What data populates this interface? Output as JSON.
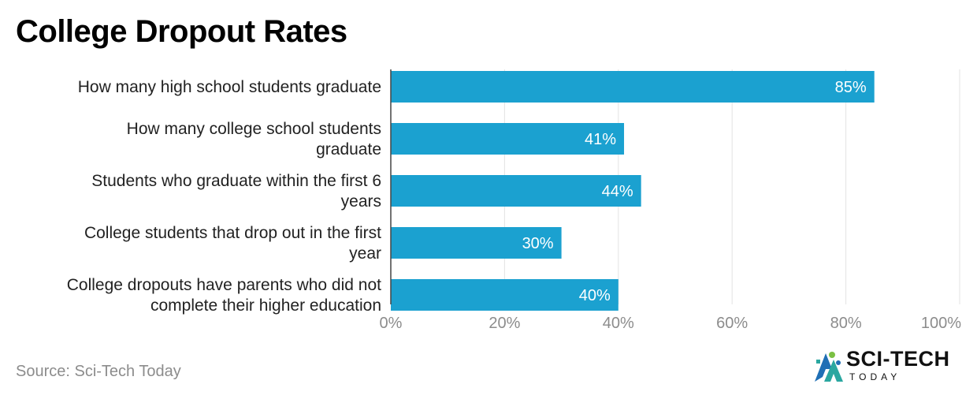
{
  "title": "College Dropout Rates",
  "source": "Source: Sci-Tech Today",
  "logo": {
    "name": "SCI-TECH",
    "sub": "TODAY"
  },
  "colors": {
    "bar": "#1ba1d0",
    "grid": "#e3e3e3",
    "axis": "#8c8c8c",
    "label": "#222222"
  },
  "chart_data": {
    "type": "bar",
    "orientation": "horizontal",
    "categories": [
      [
        "How many high school students graduate"
      ],
      [
        "How many college school students",
        "graduate"
      ],
      [
        "Students who graduate within the first 6",
        "years"
      ],
      [
        "College students that drop out in the first",
        "year"
      ],
      [
        "College dropouts have parents who did not",
        "complete their higher education"
      ]
    ],
    "values": [
      85,
      41,
      44,
      30,
      40
    ],
    "value_labels": [
      "85%",
      "41%",
      "44%",
      "30%",
      "40%"
    ],
    "xlim": [
      0,
      100
    ],
    "xticks": [
      0,
      20,
      40,
      60,
      80,
      100
    ],
    "xtick_labels": [
      "0%",
      "20%",
      "40%",
      "60%",
      "80%",
      "100%"
    ],
    "grid": true
  }
}
